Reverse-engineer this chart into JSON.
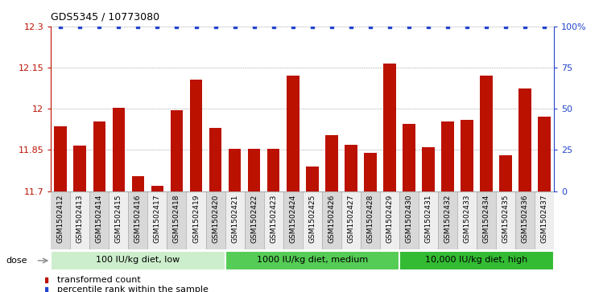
{
  "title": "GDS5345 / 10773080",
  "categories": [
    "GSM1502412",
    "GSM1502413",
    "GSM1502414",
    "GSM1502415",
    "GSM1502416",
    "GSM1502417",
    "GSM1502418",
    "GSM1502419",
    "GSM1502420",
    "GSM1502421",
    "GSM1502422",
    "GSM1502423",
    "GSM1502424",
    "GSM1502425",
    "GSM1502426",
    "GSM1502427",
    "GSM1502428",
    "GSM1502429",
    "GSM1502430",
    "GSM1502431",
    "GSM1502432",
    "GSM1502433",
    "GSM1502434",
    "GSM1502435",
    "GSM1502436",
    "GSM1502437"
  ],
  "bar_values": [
    11.935,
    11.865,
    11.955,
    12.005,
    11.755,
    11.72,
    11.995,
    12.105,
    11.93,
    11.855,
    11.855,
    11.855,
    12.12,
    11.79,
    11.905,
    11.87,
    11.84,
    12.165,
    11.945,
    11.86,
    11.955,
    11.96,
    12.12,
    11.83,
    12.075,
    11.97
  ],
  "percentile_values": [
    100,
    100,
    100,
    100,
    100,
    100,
    100,
    100,
    100,
    100,
    100,
    100,
    100,
    100,
    100,
    100,
    100,
    100,
    100,
    100,
    100,
    100,
    100,
    100,
    100,
    100
  ],
  "bar_color": "#bb1100",
  "percentile_color": "#2244cc",
  "ymin": 11.7,
  "ymax": 12.3,
  "y2min": 0,
  "y2max": 100,
  "yticks": [
    11.7,
    11.85,
    12.0,
    12.15,
    12.3
  ],
  "ytick_labels": [
    "11.7",
    "11.85",
    "12",
    "12.15",
    "12.3"
  ],
  "y2ticks": [
    0,
    25,
    50,
    75,
    100
  ],
  "y2ticklabels": [
    "0",
    "25",
    "50",
    "75",
    "100%"
  ],
  "groups": [
    {
      "label": "100 IU/kg diet, low",
      "start": 0,
      "end": 9
    },
    {
      "label": "1000 IU/kg diet, medium",
      "start": 9,
      "end": 18
    },
    {
      "label": "10,000 IU/kg diet, high",
      "start": 18,
      "end": 26
    }
  ],
  "group_colors": [
    "#cceecc",
    "#55cc55",
    "#33bb33"
  ],
  "dose_label": "dose",
  "legend_bar_label": "transformed count",
  "legend_dot_label": "percentile rank within the sample",
  "plot_bg_color": "#ffffff",
  "fig_bg_color": "#ffffff",
  "tick_bg_even": "#d8d8d8",
  "tick_bg_odd": "#eeeeee"
}
